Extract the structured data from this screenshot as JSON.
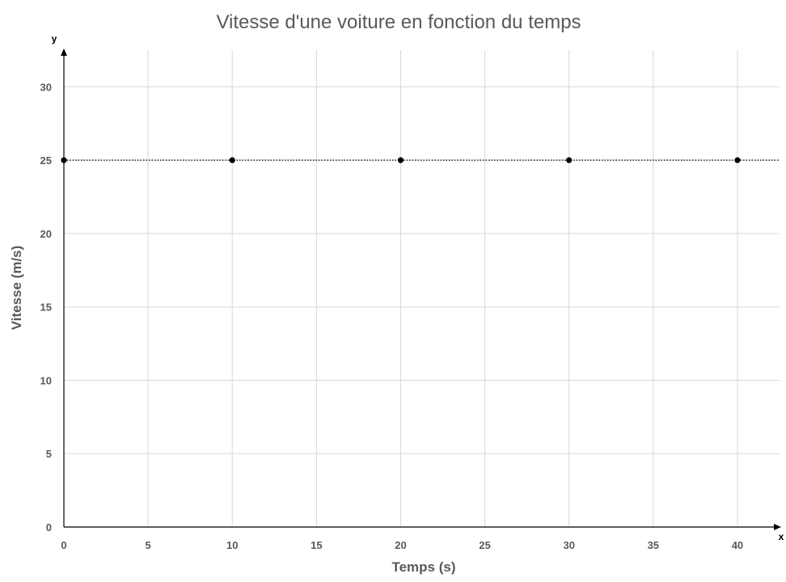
{
  "chart_data": {
    "type": "scatter",
    "title": "Vitesse d'une voiture en fonction du temps",
    "xlabel": "Temps (s)",
    "ylabel": "Vitesse (m/s)",
    "x_axis_letter": "x",
    "y_axis_letter": "y",
    "xlim": [
      0,
      42.5
    ],
    "ylim": [
      0,
      32.5
    ],
    "x_ticks": [
      0,
      5,
      10,
      15,
      20,
      25,
      30,
      35,
      40
    ],
    "y_ticks": [
      0,
      5,
      10,
      15,
      20,
      25,
      30
    ],
    "grid": true,
    "series": [
      {
        "x": [
          0,
          10,
          20,
          30,
          40
        ],
        "y": [
          25,
          25,
          25,
          25,
          25
        ],
        "marker_color": "#000000",
        "line_style": "dotted",
        "line_extends_to": 42.5
      }
    ]
  },
  "colors": {
    "grid": "#d9d9d9",
    "axis": "#000000",
    "text": "#595959",
    "marker": "#000000"
  }
}
